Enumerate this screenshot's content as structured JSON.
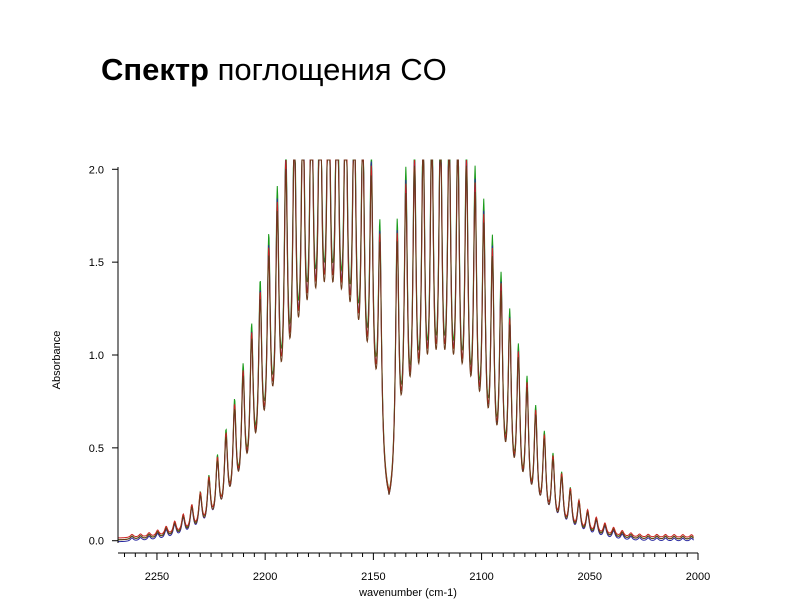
{
  "slide": {
    "title_bold": "Спектр",
    "title_rest": "поглощения  CO"
  },
  "colors": {
    "series_green": "#1a9a1a",
    "series_red": "#cc2020",
    "series_blue": "#2a2aa0",
    "series_brown": "#6b3a1a",
    "axis": "#000000"
  },
  "chart_data": {
    "type": "line",
    "title": "",
    "xlabel": "wavenumber (cm-1)",
    "ylabel": "Absorbance",
    "xlim": [
      2268,
      2000
    ],
    "ylim": [
      -0.05,
      2.05
    ],
    "x_reversed": true,
    "x_ticks": [
      2250,
      2200,
      2150,
      2100,
      2050,
      2000
    ],
    "x_tick_labels": [
      "2250",
      "2200",
      "2150",
      "2100",
      "2050",
      "2000"
    ],
    "y_ticks": [
      0.0,
      0.5,
      1.0,
      1.5,
      2.0
    ],
    "y_tick_labels": [
      "0.0",
      "0.5",
      "1.0",
      "1.5",
      "2.0"
    ],
    "grid": false,
    "legend": "none",
    "band_center": 2143,
    "r_branch": {
      "first_line": 2147,
      "spacing": 3.95,
      "count": 30,
      "peak_envelope_max": 2.0,
      "envelope_max_at": 2171,
      "valley_envelope_max": 0.85
    },
    "p_branch": {
      "first_line": 2139,
      "spacing": 4.0,
      "count": 36,
      "peak_envelope_max": 1.9,
      "envelope_max_at": 2119,
      "valley_envelope_max": 0.45
    },
    "series": [
      {
        "color_key": "series_green",
        "scale": 1.0,
        "offset": 0.0
      },
      {
        "color_key": "series_blue",
        "scale": 0.97,
        "offset": -0.01
      },
      {
        "color_key": "series_red",
        "scale": 0.95,
        "offset": 0.01
      },
      {
        "color_key": "series_brown",
        "scale": 0.93,
        "offset": 0.0
      }
    ]
  }
}
